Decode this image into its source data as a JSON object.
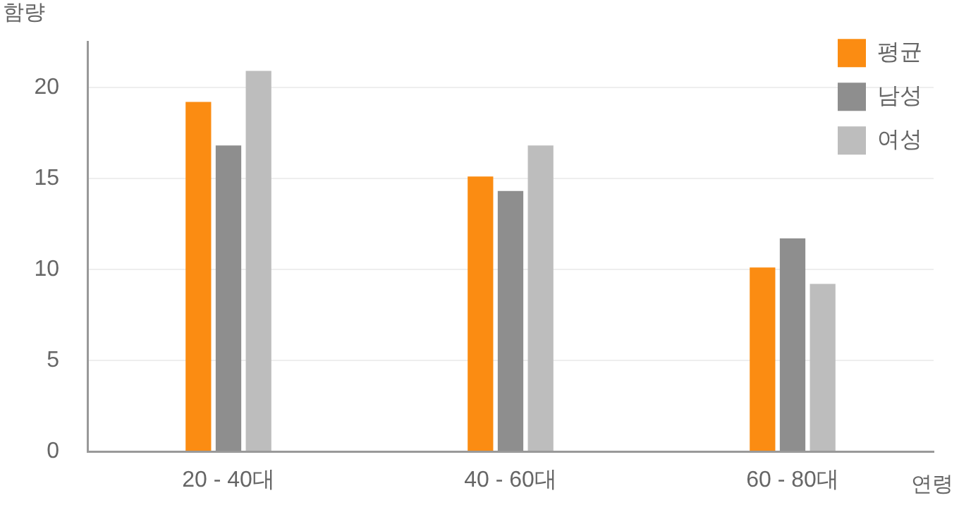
{
  "chart_data": {
    "type": "bar",
    "xlabel": "연령",
    "ylabel": "함량",
    "categories": [
      "20 - 40대",
      "40 - 60대",
      "60 - 80대"
    ],
    "series": [
      {
        "name": "평균",
        "color": "#fb8c12",
        "values": [
          19.2,
          15.1,
          10.1
        ]
      },
      {
        "name": "남성",
        "color": "#8e8e8e",
        "values": [
          16.8,
          14.3,
          11.7
        ]
      },
      {
        "name": "여성",
        "color": "#bdbdbd",
        "values": [
          20.9,
          16.8,
          9.2
        ]
      }
    ],
    "ylim": [
      0,
      22.5
    ],
    "yticks": [
      0,
      5,
      10,
      15,
      20
    ],
    "grid": "y",
    "legend": "top right"
  }
}
